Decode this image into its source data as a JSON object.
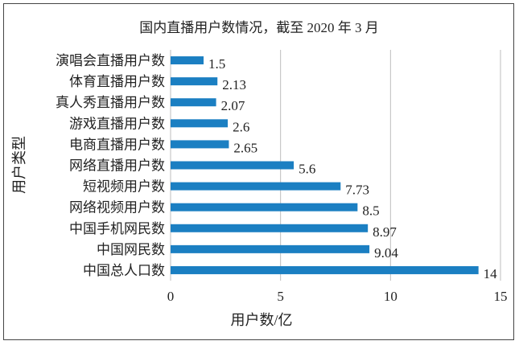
{
  "chart_data": {
    "type": "bar",
    "orientation": "horizontal",
    "title": "国内直播用户数情况，截至 2020 年 3 月",
    "xlabel": "用户数/亿",
    "ylabel": "用户类型",
    "xlim": [
      0,
      15
    ],
    "xticks": [
      "0",
      "5",
      "10",
      "15"
    ],
    "grid": "vertical",
    "bar_color": "#1b7fc2",
    "categories": [
      "演唱会直播用户数",
      "体育直播用户数",
      "真人秀直播用户数",
      "游戏直播用户数",
      "电商直播用户数",
      "网络直播用户数",
      "短视频用户数",
      "网络视频用户数",
      "中国手机网民数",
      "中国网民数",
      "中国总人口数"
    ],
    "values": [
      1.5,
      2.13,
      2.07,
      2.6,
      2.65,
      5.6,
      7.73,
      8.5,
      8.97,
      9.04,
      14
    ],
    "value_labels": [
      "1.5",
      "2.13",
      "2.07",
      "2.6",
      "2.65",
      "5.6",
      "7.73",
      "8.5",
      "8.97",
      "9.04",
      "14"
    ]
  }
}
